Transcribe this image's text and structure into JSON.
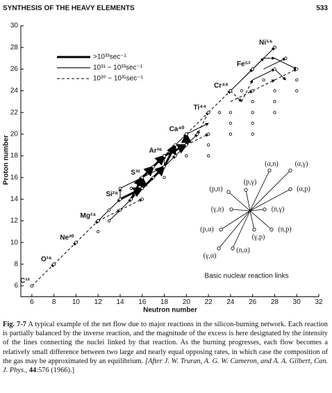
{
  "header": {
    "title": "SYNTHESIS OF THE HEAVY ELEMENTS",
    "page": "533"
  },
  "chart_data": {
    "type": "network",
    "xlabel": "Neutron number",
    "ylabel": "Proton number",
    "xlim": [
      5,
      32
    ],
    "ylim": [
      5,
      30
    ],
    "xticks": [
      6,
      8,
      10,
      12,
      14,
      16,
      18,
      20,
      22,
      24,
      26,
      28,
      30,
      32
    ],
    "yticks": [
      6,
      8,
      10,
      12,
      14,
      16,
      18,
      20,
      22,
      24,
      26,
      28,
      30
    ],
    "series": [
      {
        "name": ">10³³sec⁻¹",
        "color": "#000000",
        "line_width": 3,
        "dashed": false,
        "links": [
          {
            "x": [
              14,
              16
            ],
            "y": [
              14,
              15
            ]
          },
          {
            "x": [
              16,
              16
            ],
            "y": [
              15,
              16
            ]
          },
          {
            "x": [
              15,
              16
            ],
            "y": [
              14,
              16
            ]
          },
          {
            "x": [
              16,
              17
            ],
            "y": [
              16,
              17
            ]
          },
          {
            "x": [
              17,
              18
            ],
            "y": [
              17,
              18
            ]
          },
          {
            "x": [
              18,
              20
            ],
            "y": [
              18,
              19
            ]
          },
          {
            "x": [
              20,
              20
            ],
            "y": [
              19,
              20
            ]
          },
          {
            "x": [
              16,
              18
            ],
            "y": [
              15,
              17
            ]
          },
          {
            "x": [
              18,
              19
            ],
            "y": [
              17,
              19
            ]
          }
        ]
      },
      {
        "name": "10³¹ − 10³³sec⁻¹",
        "color": "#000000",
        "line_width": 1,
        "dashed": false,
        "links": [
          {
            "x": [
              12,
              14
            ],
            "y": [
              12,
              14
            ]
          },
          {
            "x": [
              14,
              14
            ],
            "y": [
              14,
              15
            ]
          },
          {
            "x": [
              14,
              16
            ],
            "y": [
              15,
              16
            ]
          },
          {
            "x": [
              16,
              18
            ],
            "y": [
              16,
              17
            ]
          },
          {
            "x": [
              18,
              18
            ],
            "y": [
              17,
              18
            ]
          },
          {
            "x": [
              18,
              19
            ],
            "y": [
              18,
              19
            ]
          },
          {
            "x": [
              19,
              20
            ],
            "y": [
              19,
              20
            ]
          },
          {
            "x": [
              20,
              22
            ],
            "y": [
              20,
              21
            ]
          },
          {
            "x": [
              13,
              15
            ],
            "y": [
              12,
              14
            ]
          },
          {
            "x": [
              15,
              17
            ],
            "y": [
              14,
              16
            ]
          },
          {
            "x": [
              17,
              19
            ],
            "y": [
              16,
              18
            ]
          },
          {
            "x": [
              19,
              21
            ],
            "y": [
              18,
              20
            ]
          },
          {
            "x": [
              24,
              26
            ],
            "y": [
              24,
              26
            ]
          },
          {
            "x": [
              26,
              28
            ],
            "y": [
              26,
              28
            ]
          },
          {
            "x": [
              26,
              27
            ],
            "y": [
              26,
              27
            ]
          },
          {
            "x": [
              27,
              28
            ],
            "y": [
              27,
              27
            ]
          },
          {
            "x": [
              28,
              30
            ],
            "y": [
              27,
              26
            ]
          },
          {
            "x": [
              26,
              28
            ],
            "y": [
              25,
              26
            ]
          },
          {
            "x": [
              25,
              26
            ],
            "y": [
              25,
              26
            ]
          },
          {
            "x": [
              27,
              29
            ],
            "y": [
              26,
              27
            ]
          },
          {
            "x": [
              28,
              29
            ],
            "y": [
              26,
              25
            ]
          }
        ]
      },
      {
        "name": "10³⁰ − 10³¹sec⁻¹",
        "color": "#000000",
        "line_width": 1,
        "dashed": true,
        "links": [
          {
            "x": [
              6,
              8
            ],
            "y": [
              6,
              8
            ]
          },
          {
            "x": [
              8,
              10
            ],
            "y": [
              8,
              10
            ]
          },
          {
            "x": [
              10,
              12
            ],
            "y": [
              10,
              12
            ]
          },
          {
            "x": [
              20,
              22
            ],
            "y": [
              20,
              22
            ]
          },
          {
            "x": [
              22,
              24
            ],
            "y": [
              22,
              24
            ]
          },
          {
            "x": [
              22,
              21
            ],
            "y": [
              22,
              20
            ]
          },
          {
            "x": [
              24,
              25
            ],
            "y": [
              24,
              23
            ]
          },
          {
            "x": [
              25,
              26
            ],
            "y": [
              23,
              25
            ]
          },
          {
            "x": [
              12,
              14
            ],
            "y": [
              12,
              13
            ]
          },
          {
            "x": [
              14,
              16
            ],
            "y": [
              13,
              14
            ]
          },
          {
            "x": [
              20,
              22
            ],
            "y": [
              19,
              20
            ]
          },
          {
            "x": [
              24,
              26
            ],
            "y": [
              23,
              24
            ]
          },
          {
            "x": [
              26,
              28
            ],
            "y": [
              24,
              25
            ]
          },
          {
            "x": [
              28,
              30
            ],
            "y": [
              25,
              26
            ]
          }
        ]
      }
    ],
    "nuclei": [
      {
        "label": "C¹²",
        "x": 6,
        "y": 6
      },
      {
        "label": "O¹⁶",
        "x": 8,
        "y": 8
      },
      {
        "label": "Ne²⁰",
        "x": 10,
        "y": 10
      },
      {
        "label": "Mg²⁴",
        "x": 12,
        "y": 12
      },
      {
        "label": "Si²⁸",
        "x": 14,
        "y": 14
      },
      {
        "label": "S³²",
        "x": 16,
        "y": 16
      },
      {
        "label": "Ar³⁶",
        "x": 18,
        "y": 18
      },
      {
        "label": "Ca⁴⁰",
        "x": 20,
        "y": 20
      },
      {
        "label": "Ti⁴⁴",
        "x": 22,
        "y": 22
      },
      {
        "label": "Cr⁴⁸",
        "x": 24,
        "y": 24
      },
      {
        "label": "Fe⁵²",
        "x": 26,
        "y": 26
      },
      {
        "label": "Ni⁵⁶",
        "x": 28,
        "y": 28
      }
    ],
    "points": [
      [
        12,
        11
      ],
      [
        13,
        12
      ],
      [
        13,
        13
      ],
      [
        14,
        13
      ],
      [
        14,
        15
      ],
      [
        15,
        15
      ],
      [
        15,
        14
      ],
      [
        16,
        15
      ],
      [
        16,
        14
      ],
      [
        17,
        16
      ],
      [
        17,
        17
      ],
      [
        18,
        17
      ],
      [
        18,
        16
      ],
      [
        19,
        18
      ],
      [
        20,
        19
      ],
      [
        19,
        19
      ],
      [
        20,
        18
      ],
      [
        21,
        20
      ],
      [
        22,
        20
      ],
      [
        22,
        19
      ],
      [
        22,
        18
      ],
      [
        23,
        22
      ],
      [
        24,
        20
      ],
      [
        24,
        21
      ],
      [
        24,
        22
      ],
      [
        25,
        24
      ],
      [
        26,
        20
      ],
      [
        26,
        21
      ],
      [
        26,
        22
      ],
      [
        26,
        23
      ],
      [
        26,
        24
      ],
      [
        27,
        25
      ],
      [
        28,
        22
      ],
      [
        28,
        23
      ],
      [
        28,
        24
      ],
      [
        28,
        26
      ],
      [
        29,
        27
      ],
      [
        30,
        24
      ],
      [
        30,
        25
      ],
      [
        30,
        26
      ]
    ]
  },
  "inset": {
    "title": "Basic nuclear reaction links",
    "links": [
      "(α,n)",
      "(α,γ)",
      "(p,γ)",
      "(α,p)",
      "(p,n)",
      "(γ,n)",
      "(n,γ)",
      "(p,α)",
      "(n,p)",
      "(γ,p)",
      "(γ,α)",
      "(n,α)"
    ]
  },
  "caption": {
    "label": "Fig. 7-7",
    "text": "A typical example of the net flow due to major reactions in the silicon-burning network. Each reaction is partially balanced by the inverse reaction, and the magnitude of the excess is here designated by the intensity of the lines connecting the nuclei linked by that reaction. As the burning progresses, each flow becomes a relatively small difference between two large and nearly equal opposing rates, in which case the composition of the gas may be approximated by an equilibrium.",
    "citation": "[After J. W. Truran, A. G. W. Cameron, and A. A. Gilbert, Can. J. Phys.,",
    "volume": "44",
    "pages": ":576 (1966).]"
  }
}
